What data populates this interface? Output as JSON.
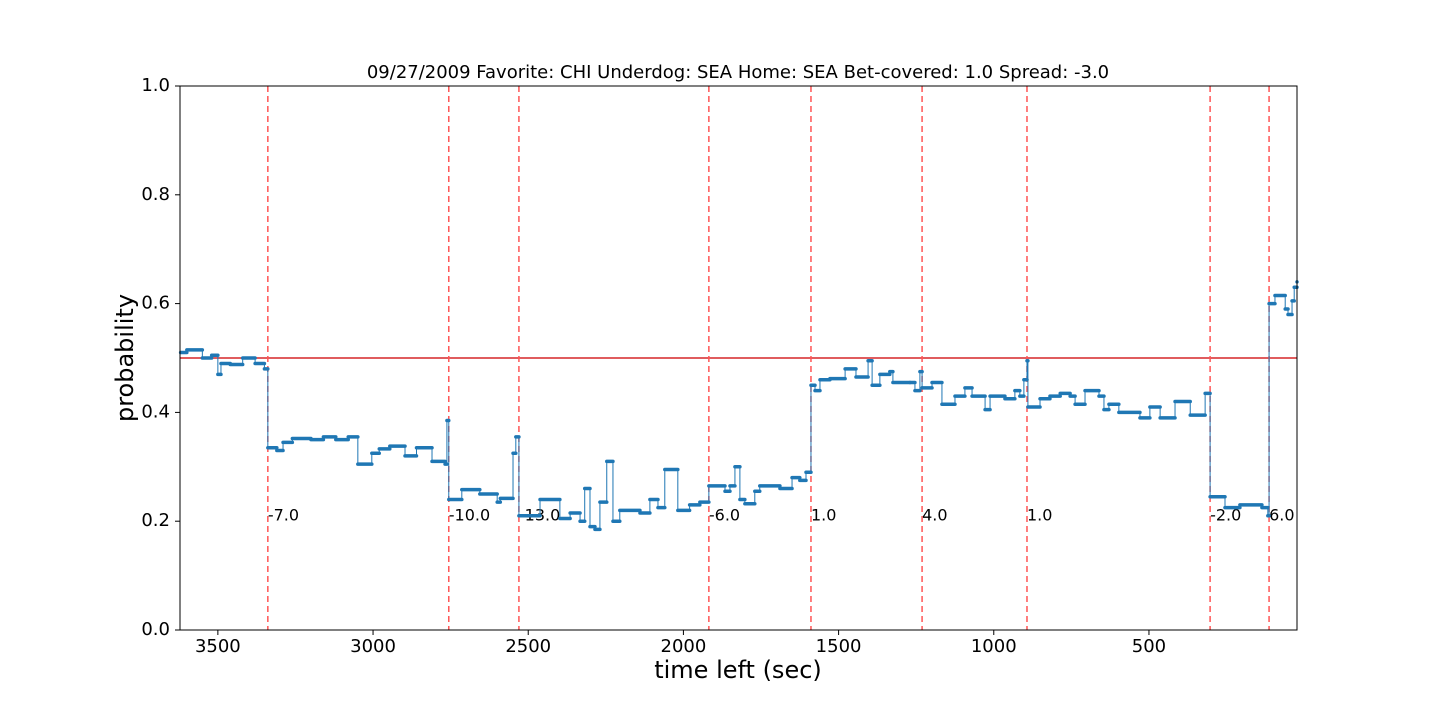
{
  "chart_data": {
    "type": "step",
    "title": "09/27/2009 Favorite: CHI Underdog: SEA Home: SEA Bet-covered: 1.0 Spread: -3.0",
    "xlabel": "time left (sec)",
    "ylabel": "probability",
    "color": "#1f77b4",
    "x": [
      3620,
      3600,
      3550,
      3520,
      3500,
      3490,
      3460,
      3420,
      3380,
      3350,
      3339,
      3310,
      3290,
      3260,
      3200,
      3160,
      3120,
      3080,
      3049,
      3004,
      2980,
      2946,
      2897,
      2860,
      2810,
      2768,
      2762,
      2756,
      2714,
      2656,
      2600,
      2590,
      2549,
      2540,
      2530,
      2462,
      2398,
      2365,
      2333,
      2318,
      2301,
      2285,
      2269,
      2247,
      2227,
      2205,
      2140,
      2108,
      2082,
      2060,
      2018,
      1980,
      1947,
      1918,
      1866,
      1850,
      1834,
      1818,
      1802,
      1770,
      1754,
      1689,
      1650,
      1625,
      1605,
      1589,
      1576,
      1560,
      1528,
      1479,
      1444,
      1405,
      1392,
      1367,
      1335,
      1325,
      1270,
      1254,
      1238,
      1231,
      1199,
      1167,
      1125,
      1093,
      1070,
      1028,
      1012,
      964,
      932,
      916,
      903,
      893,
      890,
      851,
      819,
      786,
      754,
      738,
      706,
      661,
      645,
      629,
      597,
      529,
      497,
      464,
      416,
      367,
      319,
      303,
      255,
      207,
      136,
      117,
      113,
      94,
      61,
      52,
      39,
      32,
      23
    ],
    "values": [
      0.51,
      0.515,
      0.5,
      0.505,
      0.47,
      0.49,
      0.488,
      0.5,
      0.49,
      0.48,
      0.335,
      0.33,
      0.345,
      0.352,
      0.35,
      0.355,
      0.35,
      0.355,
      0.305,
      0.325,
      0.333,
      0.338,
      0.32,
      0.335,
      0.31,
      0.305,
      0.385,
      0.24,
      0.258,
      0.25,
      0.235,
      0.242,
      0.325,
      0.355,
      0.21,
      0.24,
      0.205,
      0.215,
      0.2,
      0.26,
      0.19,
      0.185,
      0.235,
      0.31,
      0.2,
      0.22,
      0.215,
      0.24,
      0.225,
      0.295,
      0.22,
      0.23,
      0.235,
      0.265,
      0.255,
      0.265,
      0.3,
      0.24,
      0.232,
      0.255,
      0.265,
      0.26,
      0.28,
      0.275,
      0.29,
      0.45,
      0.44,
      0.46,
      0.462,
      0.48,
      0.465,
      0.495,
      0.45,
      0.47,
      0.475,
      0.455,
      0.455,
      0.44,
      0.475,
      0.445,
      0.455,
      0.415,
      0.43,
      0.445,
      0.43,
      0.405,
      0.43,
      0.425,
      0.44,
      0.43,
      0.46,
      0.495,
      0.41,
      0.425,
      0.43,
      0.435,
      0.43,
      0.415,
      0.44,
      0.43,
      0.405,
      0.415,
      0.4,
      0.39,
      0.41,
      0.39,
      0.42,
      0.395,
      0.435,
      0.245,
      0.225,
      0.23,
      0.225,
      0.21,
      0.6,
      0.615,
      0.59,
      0.58,
      0.605,
      0.63,
      0.64
    ],
    "xlim": [
      3622,
      23
    ],
    "ylim": [
      0,
      1
    ],
    "xticks": [
      3500,
      3000,
      2500,
      2000,
      1500,
      1000,
      500
    ],
    "yticks": [
      {
        "value": 0,
        "label": "0.0"
      },
      {
        "value": 0.2,
        "label": "0.2"
      },
      {
        "value": 0.4,
        "label": "0.4"
      },
      {
        "value": 0.6,
        "label": "0.6"
      },
      {
        "value": 0.8,
        "label": "0.8"
      },
      {
        "value": 1,
        "label": "1.0"
      }
    ],
    "hline": 0.5,
    "hline_color": "#d62728",
    "vline_color": "#ff5555",
    "score_changes": [
      {
        "x": 3339,
        "label": "-7.0"
      },
      {
        "x": 2756,
        "label": "-10.0"
      },
      {
        "x": 2530,
        "label": "-13.0"
      },
      {
        "x": 1918,
        "label": "-6.0"
      },
      {
        "x": 1589,
        "label": "1.0"
      },
      {
        "x": 1231,
        "label": "4.0"
      },
      {
        "x": 893,
        "label": "1.0"
      },
      {
        "x": 303,
        "label": "-2.0"
      },
      {
        "x": 113,
        "label": "6.0"
      }
    ]
  }
}
